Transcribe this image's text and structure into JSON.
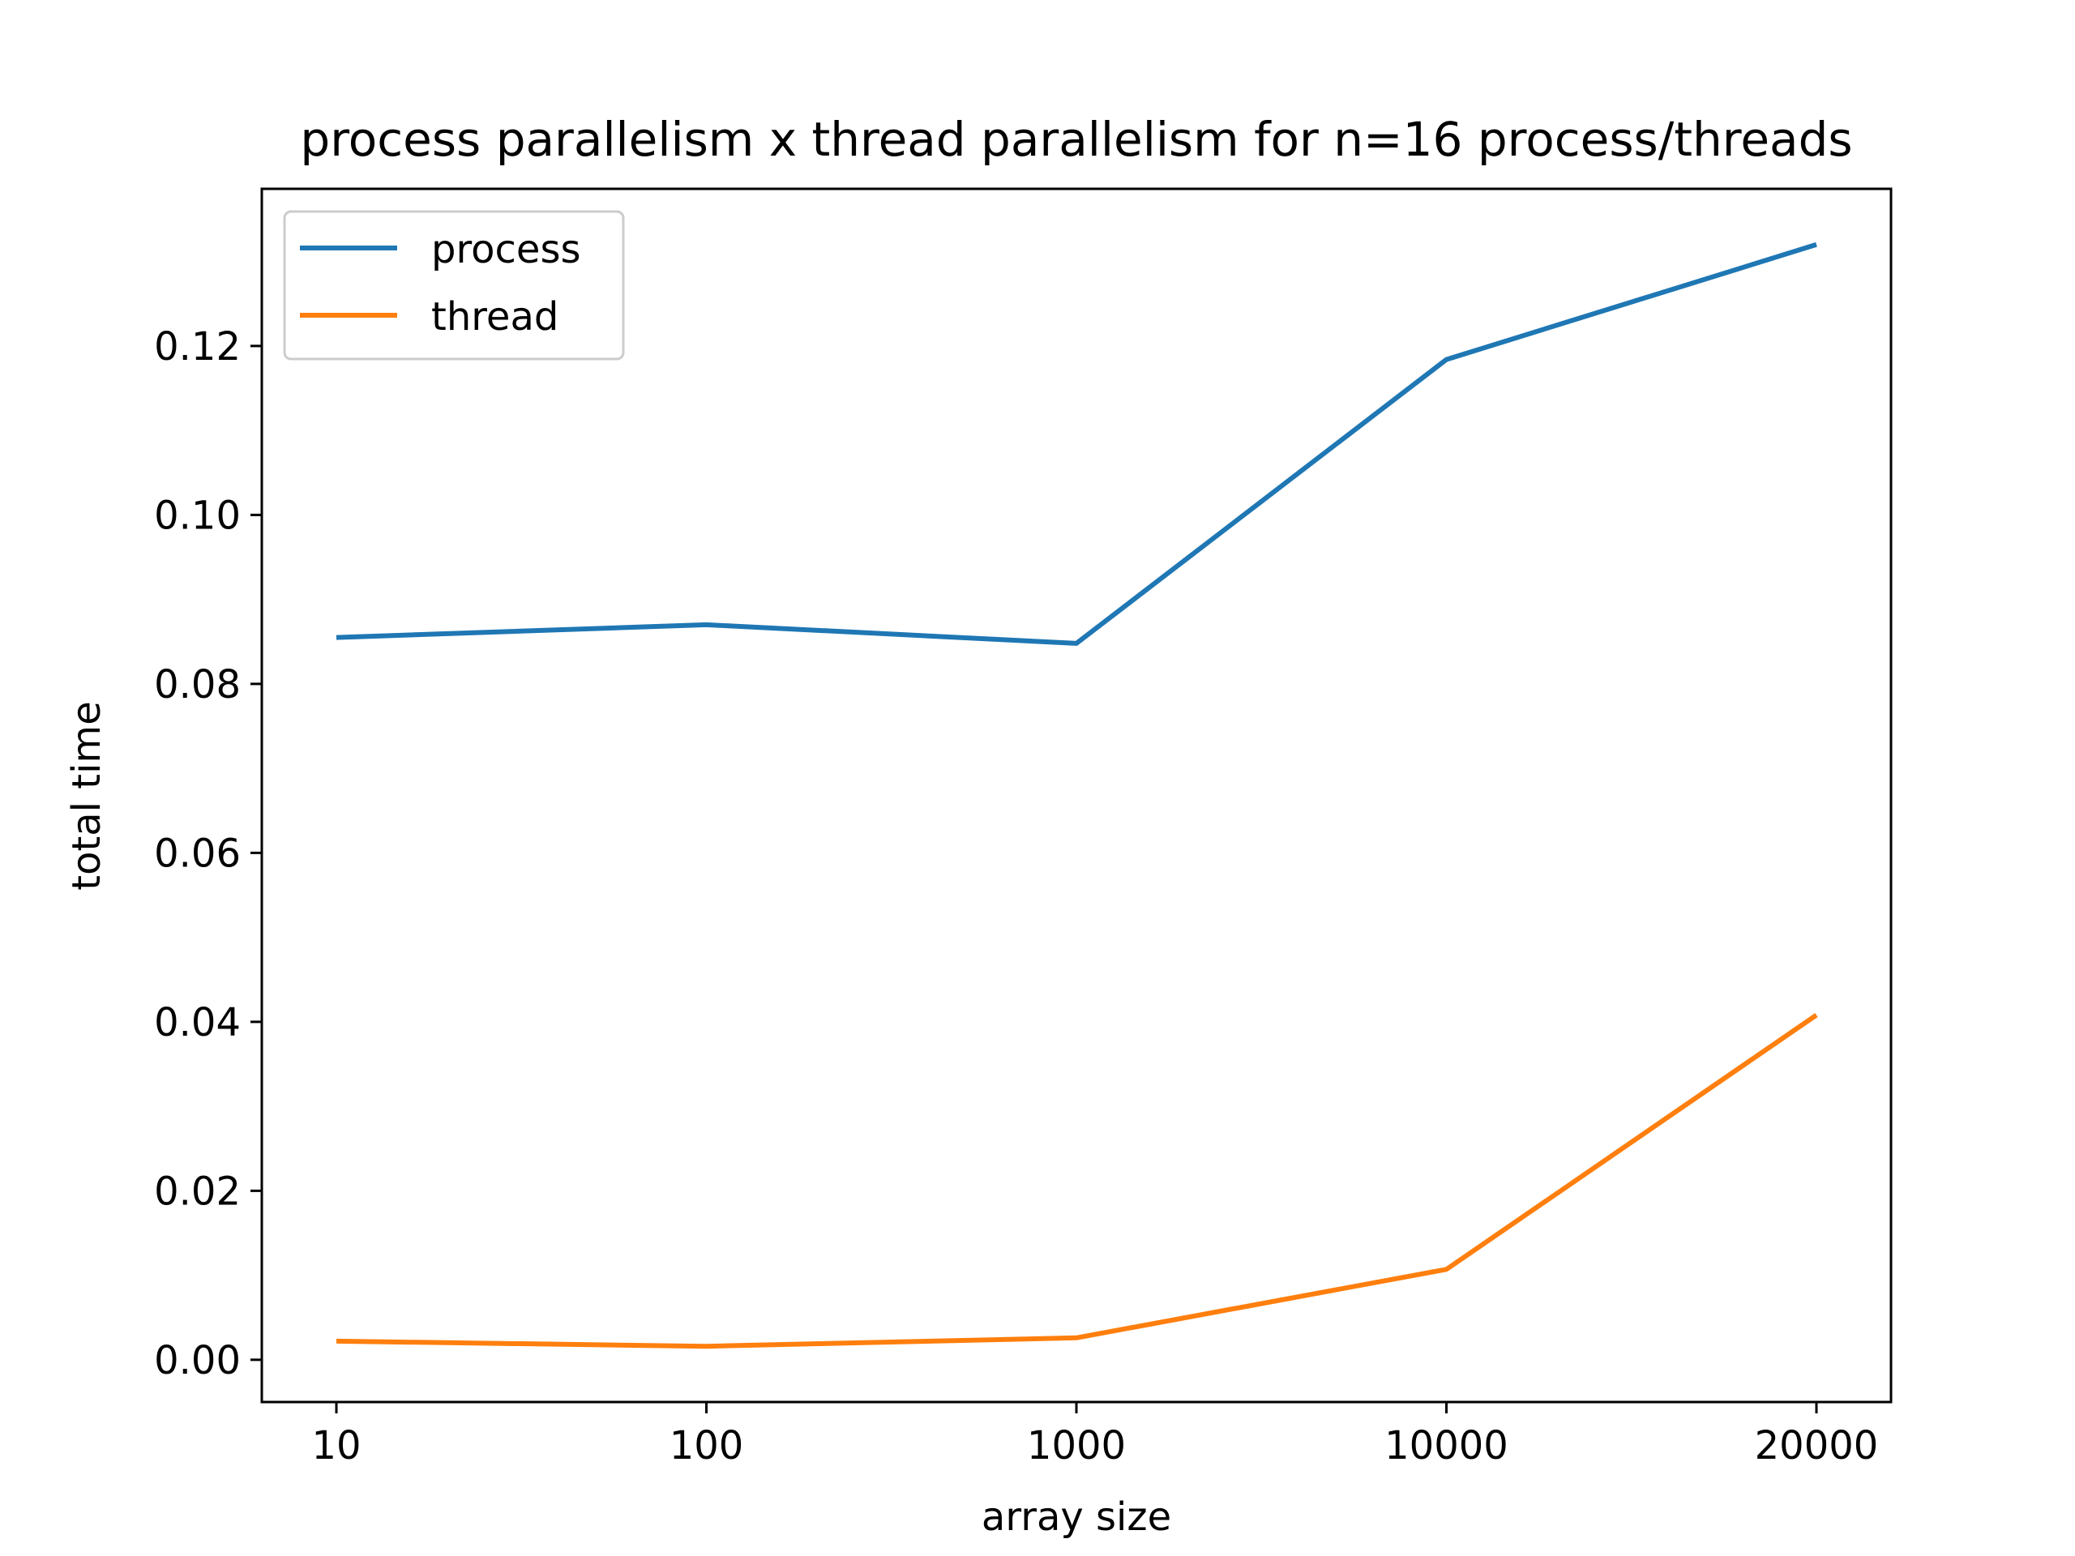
{
  "chart_data": {
    "type": "line",
    "title": "process parallelism x thread parallelism for n=16 process/threads",
    "xlabel": "array size",
    "ylabel": "total time",
    "categories": [
      "10",
      "100",
      "1000",
      "10000",
      "20000"
    ],
    "series": [
      {
        "name": "process",
        "color": "#1f77b4",
        "values": [
          0.0855,
          0.087,
          0.0848,
          0.1184,
          0.132
        ]
      },
      {
        "name": "thread",
        "color": "#ff7f0e",
        "values": [
          0.0022,
          0.0016,
          0.0026,
          0.0107,
          0.0408
        ]
      }
    ],
    "ylim": [
      -0.005,
      0.1386
    ],
    "yticks": [
      0.0,
      0.02,
      0.04,
      0.06,
      0.08,
      0.1,
      0.12
    ],
    "ytick_labels": [
      "0.00",
      "0.02",
      "0.04",
      "0.06",
      "0.08",
      "0.10",
      "0.12"
    ],
    "grid": false,
    "legend_position": "top-left"
  }
}
